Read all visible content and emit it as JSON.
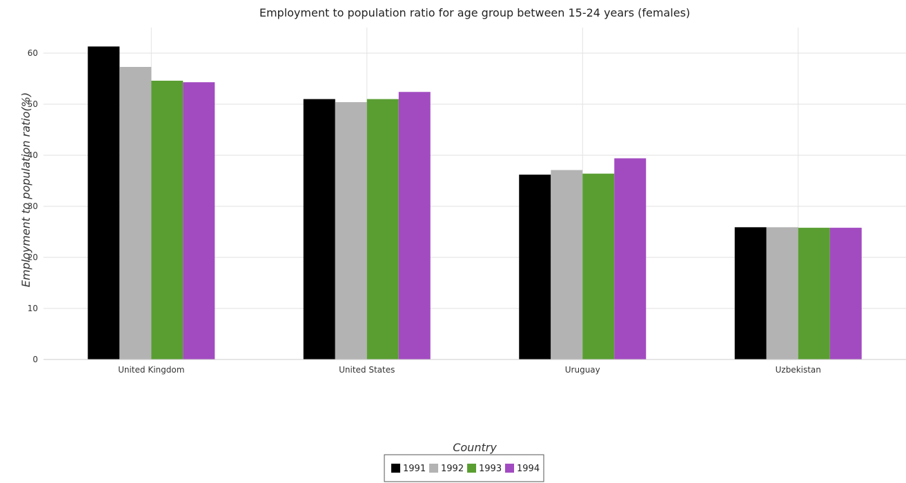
{
  "chart_data": {
    "type": "bar",
    "title": "Employment to population ratio for age group between 15-24 years (females)",
    "xlabel": "Country",
    "ylabel": "Employment to population ratio(%)",
    "categories": [
      "United Kingdom",
      "United States",
      "Uruguay",
      "Uzbekistan"
    ],
    "series": [
      {
        "name": "1991",
        "color": "#000000",
        "values": [
          61.3,
          51.0,
          36.2,
          25.9
        ]
      },
      {
        "name": "1992",
        "color": "#b3b3b3",
        "values": [
          57.3,
          50.4,
          37.1,
          25.9
        ]
      },
      {
        "name": "1993",
        "color": "#5a9e32",
        "values": [
          54.6,
          51.0,
          36.4,
          25.8
        ]
      },
      {
        "name": "1994",
        "color": "#a24bc1",
        "values": [
          54.3,
          52.4,
          39.4,
          25.8
        ]
      }
    ],
    "ylim": [
      0,
      65
    ],
    "yticks": [
      0,
      10,
      20,
      30,
      40,
      50,
      60
    ],
    "grid": true,
    "legend_position": "bottom-center"
  }
}
